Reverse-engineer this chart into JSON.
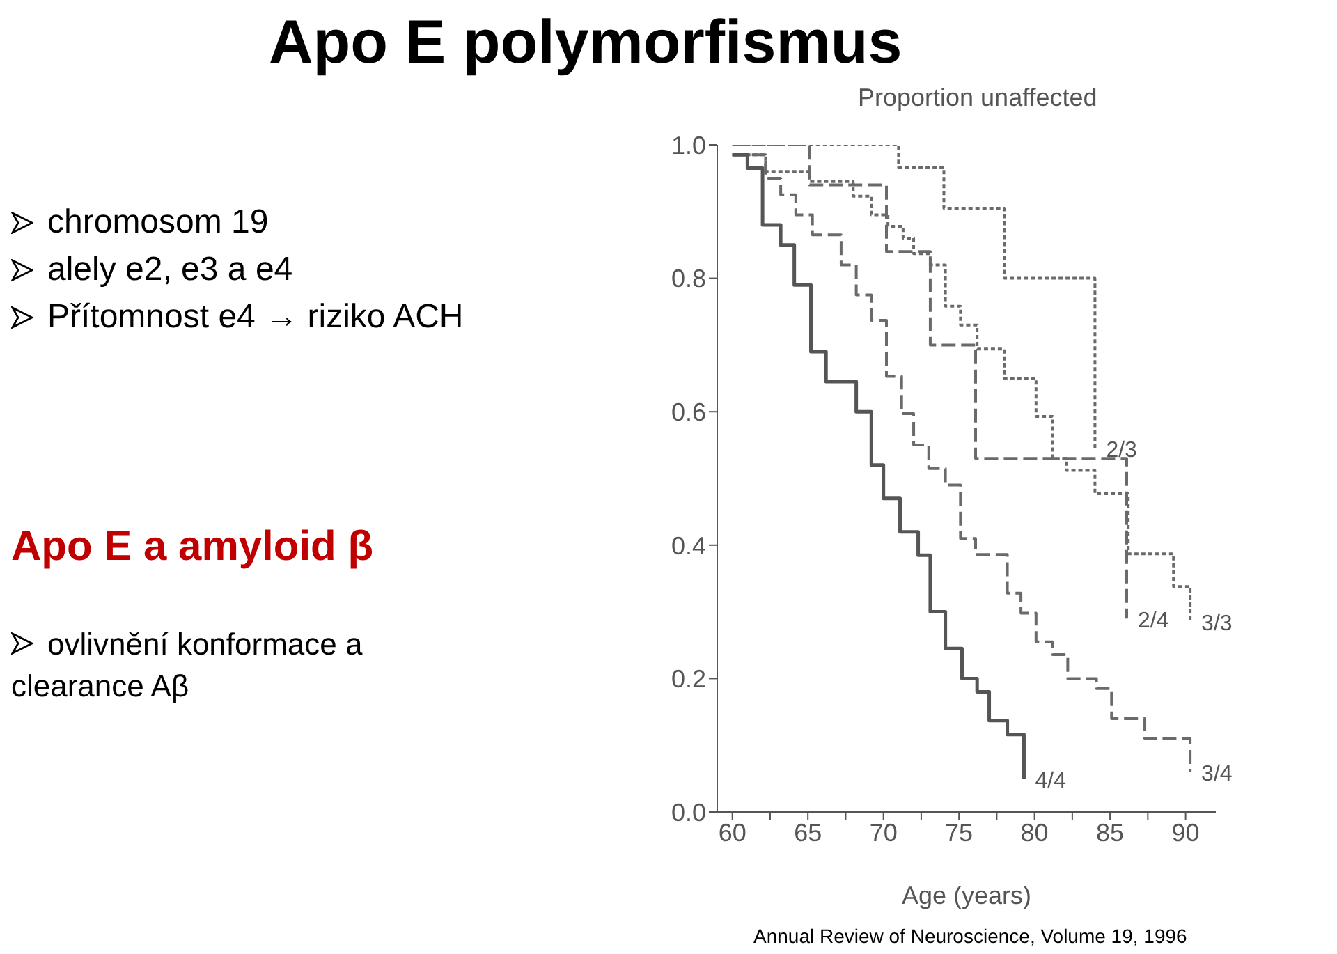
{
  "chart_data": {
    "type": "step",
    "title": "Apo E polymorfismus",
    "ylabel": "Proportion unaffected",
    "xlabel": "Age (years)",
    "annotations": [
      "chromosom 19",
      "alely e2, e3 a e4",
      "Přítomnost e4 → riziko ACH",
      "Apo E a amyloid β",
      "ovlivnění konformace a clearance Aβ",
      "Annual Review of Neuroscience, Volume 19, 1996"
    ],
    "xlim": [
      59,
      92
    ],
    "xticks": [
      60,
      {
        "value": 62.5,
        "label": null
      },
      65,
      {
        "value": 67.5,
        "label": null
      },
      70,
      {
        "value": 72.5,
        "label": null
      },
      75,
      {
        "value": 77.5,
        "label": null
      },
      80,
      {
        "value": 82.5,
        "label": null
      },
      85,
      {
        "value": 87.5,
        "label": null
      },
      90
    ],
    "ylim": [
      0,
      1
    ],
    "yticks": [
      {
        "value": 0,
        "label": "0.0"
      },
      0.2,
      0.4,
      0.6,
      0.8,
      {
        "value": 1,
        "label": "1.0"
      }
    ],
    "grid": false,
    "legend": false,
    "marker": "none",
    "series": [
      {
        "name": "2/3",
        "color": "#6a6a6a",
        "line_style": "dotted",
        "x": [
          60,
          71,
          74,
          78,
          84,
          84
        ],
        "values": [
          1,
          0.966,
          0.905,
          0.8,
          0.545,
          0.545
        ]
      },
      {
        "name": "2/4",
        "color": "#6a6a6a",
        "line_style": "dashed",
        "x": [
          60,
          65.1,
          70.2,
          73.1,
          76.1,
          86.1,
          86.1
        ],
        "values": [
          1,
          0.94,
          0.84,
          0.7,
          0.53,
          0.29,
          0.29
        ]
      },
      {
        "name": "3/3",
        "color": "#6a6a6a",
        "line_style": "dotted",
        "x": [
          60,
          62.2,
          65.1,
          68,
          69.2,
          70.3,
          71.3,
          72,
          73.1,
          74.1,
          75.1,
          76.2,
          78,
          80.1,
          81.2,
          82.1,
          84,
          86.2,
          89.2,
          90.3
        ],
        "values": [
          0.985,
          0.96,
          0.945,
          0.923,
          0.895,
          0.878,
          0.86,
          0.837,
          0.82,
          0.758,
          0.73,
          0.694,
          0.65,
          0.593,
          0.53,
          0.512,
          0.477,
          0.387,
          0.338,
          0.285
        ]
      },
      {
        "name": "3/4",
        "color": "#6a6a6a",
        "line_style": "dashed",
        "x": [
          60,
          62.2,
          63.2,
          64.2,
          65.3,
          67.2,
          68.2,
          69.2,
          70.2,
          71.2,
          72,
          73,
          74.1,
          75.1,
          76.1,
          78.2,
          79.1,
          80.1,
          81.2,
          82.2,
          84.1,
          85.1,
          87.3,
          90.3
        ],
        "values": [
          0.985,
          0.95,
          0.925,
          0.895,
          0.865,
          0.82,
          0.775,
          0.737,
          0.653,
          0.597,
          0.55,
          0.515,
          0.49,
          0.41,
          0.386,
          0.328,
          0.298,
          0.255,
          0.236,
          0.2,
          0.185,
          0.14,
          0.11,
          0.06
        ]
      },
      {
        "name": "4/4",
        "color": "#555555",
        "line_style": "solid",
        "x": [
          60,
          61,
          62,
          63.2,
          64.1,
          65.2,
          66.2,
          68.2,
          69.2,
          70,
          71.1,
          72.3,
          73.1,
          74.1,
          75.2,
          76.2,
          77,
          78.2,
          79.3
        ],
        "values": [
          0.985,
          0.965,
          0.88,
          0.85,
          0.79,
          0.69,
          0.645,
          0.6,
          0.52,
          0.47,
          0.42,
          0.385,
          0.3,
          0.245,
          0.2,
          0.18,
          0.137,
          0.116,
          0.05
        ]
      }
    ]
  }
}
